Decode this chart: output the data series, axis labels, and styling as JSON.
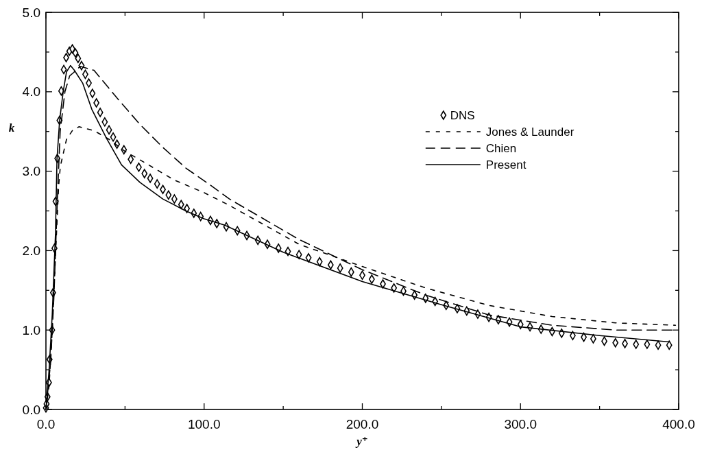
{
  "chart_data": {
    "type": "line",
    "xlabel": "y⁺",
    "ylabel": "k",
    "xlim": [
      0,
      400
    ],
    "xticks": [
      {
        "value": 0,
        "label": "0.0"
      },
      {
        "value": 50,
        "label": null
      },
      {
        "value": 100,
        "label": "100.0"
      },
      {
        "value": 150,
        "label": null
      },
      {
        "value": 200,
        "label": "200.0"
      },
      {
        "value": 250,
        "label": null
      },
      {
        "value": 300,
        "label": "300.0"
      },
      {
        "value": 350,
        "label": null
      },
      {
        "value": 400,
        "label": "400.0"
      }
    ],
    "ylim": [
      0,
      5
    ],
    "yticks": [
      {
        "value": 0,
        "label": "0.0"
      },
      {
        "value": 0.5,
        "label": null
      },
      {
        "value": 1,
        "label": "1.0"
      },
      {
        "value": 1.5,
        "label": null
      },
      {
        "value": 2,
        "label": "2.0"
      },
      {
        "value": 2.5,
        "label": null
      },
      {
        "value": 3,
        "label": "3.0"
      },
      {
        "value": 3.5,
        "label": null
      },
      {
        "value": 4,
        "label": "4.0"
      },
      {
        "value": 4.5,
        "label": null
      },
      {
        "value": 5,
        "label": "5.0"
      }
    ],
    "grid": false,
    "legend": "top right",
    "series": [
      {
        "name": "DNS",
        "type": "scatter",
        "marker": "diamond",
        "color": "#000000",
        "x": [
          0,
          0.4,
          1,
          1.9,
          2.3,
          3.9,
          4.5,
          5.4,
          6.1,
          7.2,
          8.6,
          9.7,
          11.3,
          12.8,
          14.8,
          16.7,
          18.6,
          20.3,
          22.5,
          24.9,
          27.1,
          29.4,
          31.9,
          34.3,
          37.2,
          39.9,
          42.5,
          44.9,
          49.3,
          53.6,
          58.7,
          62.3,
          65.9,
          70.3,
          73.9,
          77.5,
          81.2,
          85.5,
          89.1,
          93.5,
          97.8,
          104,
          108,
          114,
          121,
          127,
          134,
          140,
          147,
          153,
          160,
          166,
          173,
          180,
          186,
          193,
          200,
          206,
          213,
          220,
          226,
          233,
          240,
          246,
          253,
          260,
          266,
          273,
          280,
          286,
          293,
          300,
          306,
          313,
          320,
          326,
          333,
          340,
          346,
          353,
          360,
          366,
          373,
          380,
          387,
          394
        ],
        "values": [
          0.02,
          0.07,
          0.16,
          0.34,
          0.63,
          1.0,
          1.47,
          2.03,
          2.62,
          3.16,
          3.64,
          4.01,
          4.28,
          4.43,
          4.51,
          4.54,
          4.49,
          4.42,
          4.33,
          4.22,
          4.11,
          3.98,
          3.86,
          3.74,
          3.62,
          3.52,
          3.43,
          3.34,
          3.27,
          3.15,
          3.05,
          2.97,
          2.91,
          2.84,
          2.77,
          2.7,
          2.65,
          2.58,
          2.53,
          2.47,
          2.43,
          2.38,
          2.34,
          2.3,
          2.25,
          2.19,
          2.13,
          2.08,
          2.03,
          1.99,
          1.95,
          1.91,
          1.86,
          1.82,
          1.78,
          1.73,
          1.69,
          1.64,
          1.58,
          1.53,
          1.49,
          1.44,
          1.4,
          1.36,
          1.31,
          1.27,
          1.24,
          1.2,
          1.16,
          1.13,
          1.1,
          1.07,
          1.04,
          1.01,
          0.98,
          0.96,
          0.93,
          0.91,
          0.89,
          0.86,
          0.84,
          0.83,
          0.82,
          0.82,
          0.81,
          0.81
        ]
      },
      {
        "name": "Jones & Launder",
        "line_style": "dotted",
        "color": "#000000",
        "x": [
          0,
          2,
          4,
          6.2,
          8,
          9.1,
          13,
          17,
          21,
          30.4,
          40,
          50,
          62.3,
          81,
          100,
          115,
          160,
          200,
          240,
          280,
          320,
          360,
          398
        ],
        "values": [
          0,
          0.3,
          1.0,
          2.0,
          2.8,
          3.06,
          3.4,
          3.52,
          3.56,
          3.51,
          3.4,
          3.25,
          3.11,
          2.89,
          2.73,
          2.58,
          2.08,
          1.8,
          1.53,
          1.31,
          1.17,
          1.09,
          1.06
        ]
      },
      {
        "name": "Chien",
        "line_style": "dashed",
        "color": "#000000",
        "x": [
          0,
          3,
          5,
          7.2,
          9,
          12,
          15,
          17.4,
          21.7,
          30.4,
          45,
          59.4,
          73.9,
          88.4,
          102.9,
          116,
          160,
          200,
          240,
          280,
          320,
          360,
          396
        ],
        "values": [
          0,
          0.6,
          1.4,
          2.63,
          3.5,
          4.0,
          4.2,
          4.24,
          4.32,
          4.27,
          3.92,
          3.59,
          3.3,
          3.04,
          2.84,
          2.65,
          2.14,
          1.76,
          1.44,
          1.19,
          1.06,
          1.0,
          1.0
        ]
      },
      {
        "name": "Present",
        "line_style": "solid",
        "color": "#000000",
        "x": [
          0,
          2,
          4,
          6,
          7,
          8.7,
          10.9,
          13,
          15.5,
          18,
          23.2,
          29,
          38.4,
          47.8,
          59.4,
          73.9,
          88.4,
          100,
          113,
          150,
          200,
          250,
          300,
          350,
          394
        ],
        "values": [
          0,
          0.5,
          1.2,
          2.2,
          3.16,
          3.65,
          4.0,
          4.25,
          4.33,
          4.27,
          4.11,
          3.78,
          3.41,
          3.08,
          2.86,
          2.65,
          2.5,
          2.4,
          2.32,
          1.98,
          1.61,
          1.32,
          1.04,
          0.93,
          0.85
        ]
      }
    ]
  }
}
